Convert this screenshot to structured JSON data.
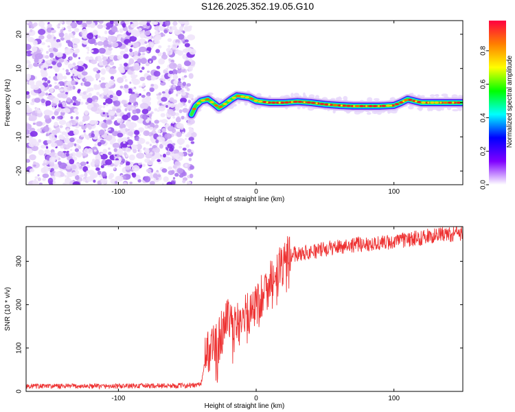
{
  "title": "S126.2025.352.19.05.G10",
  "chart_data": [
    {
      "type": "heatmap",
      "xlabel": "Height of straight line (km)",
      "ylabel": "Frequency (Hz)",
      "xlim": [
        -167,
        150
      ],
      "ylim": [
        -24,
        24
      ],
      "xticks": [
        -100,
        0,
        100
      ],
      "yticks": [
        -20,
        -10,
        0,
        10,
        20
      ],
      "noise_region_x": [
        -167,
        -46
      ],
      "signal_track": {
        "x": [
          -47,
          -44,
          -40,
          -35,
          -30,
          -27,
          -23,
          -18,
          -14,
          -10,
          -5,
          0,
          10,
          20,
          30,
          40,
          50,
          60,
          70,
          80,
          90,
          100,
          105,
          110,
          115,
          120,
          130,
          140,
          150
        ],
        "y": [
          -3.5,
          -1,
          0.5,
          1,
          -0.5,
          -1.5,
          -0.5,
          1,
          2,
          1.8,
          1.5,
          0.5,
          0,
          0,
          0.3,
          0,
          -0.5,
          -0.8,
          -1,
          -1,
          -1,
          -0.8,
          0,
          1,
          0.5,
          0,
          0,
          0,
          0
        ]
      },
      "colorbar": {
        "label": "Normalized spectral amplitude",
        "range": [
          0,
          0.98
        ],
        "ticks": [
          "0.0",
          "0.2",
          "0.4",
          "0.6",
          "0.8"
        ],
        "colors": [
          "#ffffff",
          "#7f00ff",
          "#0000ff",
          "#00ffff",
          "#00ff00",
          "#ffff00",
          "#ff7f00",
          "#ff0040"
        ]
      }
    },
    {
      "type": "line",
      "xlabel": "Height of straight line (km)",
      "ylabel": "SNR (10 * v/v)",
      "xlim": [
        -167,
        150
      ],
      "ylim": [
        0,
        380
      ],
      "xticks": [
        -100,
        0,
        100
      ],
      "yticks": [
        0,
        100,
        200,
        300
      ],
      "color": "#ee3333",
      "series": [
        {
          "x": [
            -167,
            -140,
            -120,
            -100,
            -80,
            -60,
            -45,
            -40,
            -36,
            -32,
            -28,
            -24,
            -20,
            -16,
            -12,
            -8,
            -4,
            0,
            5,
            10,
            15,
            20,
            25,
            30,
            40,
            50,
            60,
            70,
            80,
            90,
            100,
            110,
            120,
            130,
            140,
            150
          ],
          "values": [
            12,
            12,
            12,
            12,
            13,
            13,
            14,
            17,
            90,
            110,
            105,
            150,
            160,
            150,
            160,
            170,
            190,
            200,
            225,
            255,
            285,
            300,
            315,
            318,
            322,
            328,
            334,
            338,
            340,
            342,
            345,
            350,
            355,
            360,
            362,
            365
          ]
        }
      ]
    }
  ]
}
